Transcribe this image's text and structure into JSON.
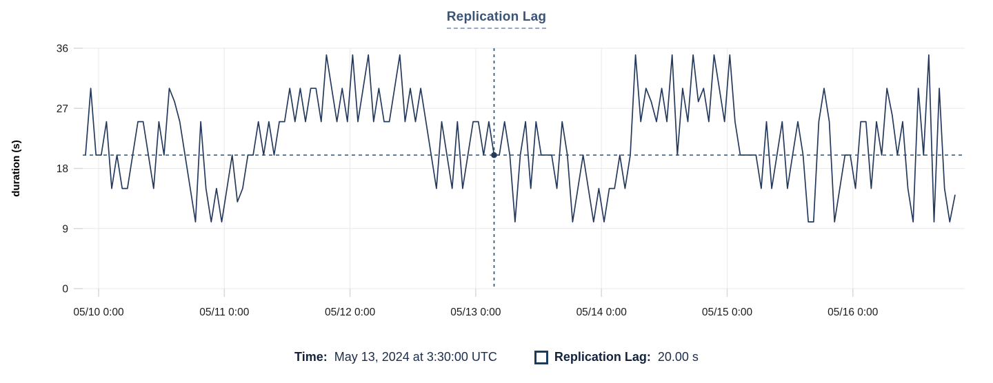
{
  "title": {
    "text": "Replication Lag"
  },
  "y_axis": {
    "label": "duration (s)",
    "tick_labels": [
      "0",
      "9",
      "18",
      "27",
      "36"
    ]
  },
  "x_axis": {
    "tick_labels": [
      "05/10 0:00",
      "05/11 0:00",
      "05/12 0:00",
      "05/13 0:00",
      "05/14 0:00",
      "05/15 0:00",
      "05/16 0:00"
    ]
  },
  "tooltip": {
    "time_label": "Time:",
    "time_value": "May 13, 2024 at 3:30:00 UTC",
    "series_label": "Replication Lag:",
    "series_value": "20.00 s"
  },
  "colors": {
    "line": "#24395c",
    "crosshair": "#2c5270",
    "grid": "#e9e9e9",
    "tick": "#d8d8d8",
    "axis_text": "#1a1a1a",
    "title_text": "#3b5377",
    "legend_text": "#13233d"
  },
  "chart_data": {
    "type": "line",
    "title": "Replication Lag",
    "ylabel": "duration (s)",
    "xlabel": "",
    "ylim": [
      0,
      36
    ],
    "y_ticks": [
      0,
      9,
      18,
      27,
      36
    ],
    "x_tick_labels": [
      "05/10 0:00",
      "05/11 0:00",
      "05/12 0:00",
      "05/13 0:00",
      "05/14 0:00",
      "05/15 0:00",
      "05/16 0:00"
    ],
    "x_start": "2024-05-09 21:30 UTC",
    "x_interval": "1 hour",
    "grid": true,
    "legend_position": "bottom",
    "series": [
      {
        "name": "Replication Lag",
        "color": "#24395c",
        "values": [
          20,
          30,
          20,
          20,
          25,
          15,
          20,
          15,
          15,
          20,
          25,
          25,
          20,
          15,
          25,
          20,
          30,
          28,
          25,
          20,
          15,
          10,
          25,
          15,
          10,
          15,
          10,
          15,
          20,
          13,
          15,
          20,
          20,
          25,
          20,
          25,
          20,
          25,
          25,
          30,
          25,
          30,
          25,
          30,
          30,
          25,
          35,
          30,
          25,
          30,
          25,
          35,
          25,
          30,
          35,
          25,
          30,
          25,
          25,
          30,
          35,
          25,
          30,
          25,
          30,
          25,
          20,
          15,
          25,
          20,
          15,
          25,
          15,
          20,
          25,
          25,
          20,
          25,
          20,
          20,
          25,
          20,
          10,
          20,
          25,
          15,
          25,
          20,
          20,
          20,
          15,
          25,
          20,
          10,
          15,
          20,
          15,
          10,
          15,
          10,
          15,
          15,
          20,
          15,
          20,
          35,
          25,
          30,
          28,
          25,
          30,
          25,
          35,
          20,
          30,
          25,
          35,
          28,
          30,
          25,
          35,
          30,
          25,
          35,
          25,
          20,
          20,
          20,
          20,
          15,
          25,
          15,
          20,
          25,
          15,
          20,
          25,
          20,
          10,
          10,
          25,
          30,
          25,
          10,
          15,
          20,
          20,
          15,
          25,
          25,
          15,
          25,
          20,
          30,
          26,
          20,
          25,
          15,
          10,
          30,
          20,
          35,
          10,
          30,
          15,
          10,
          14
        ]
      }
    ],
    "crosshair": {
      "time": "May 13, 2024 at 3:30:00 UTC",
      "index": 78,
      "value": 20,
      "value_text": "20.00 s",
      "style": "dashed"
    }
  }
}
